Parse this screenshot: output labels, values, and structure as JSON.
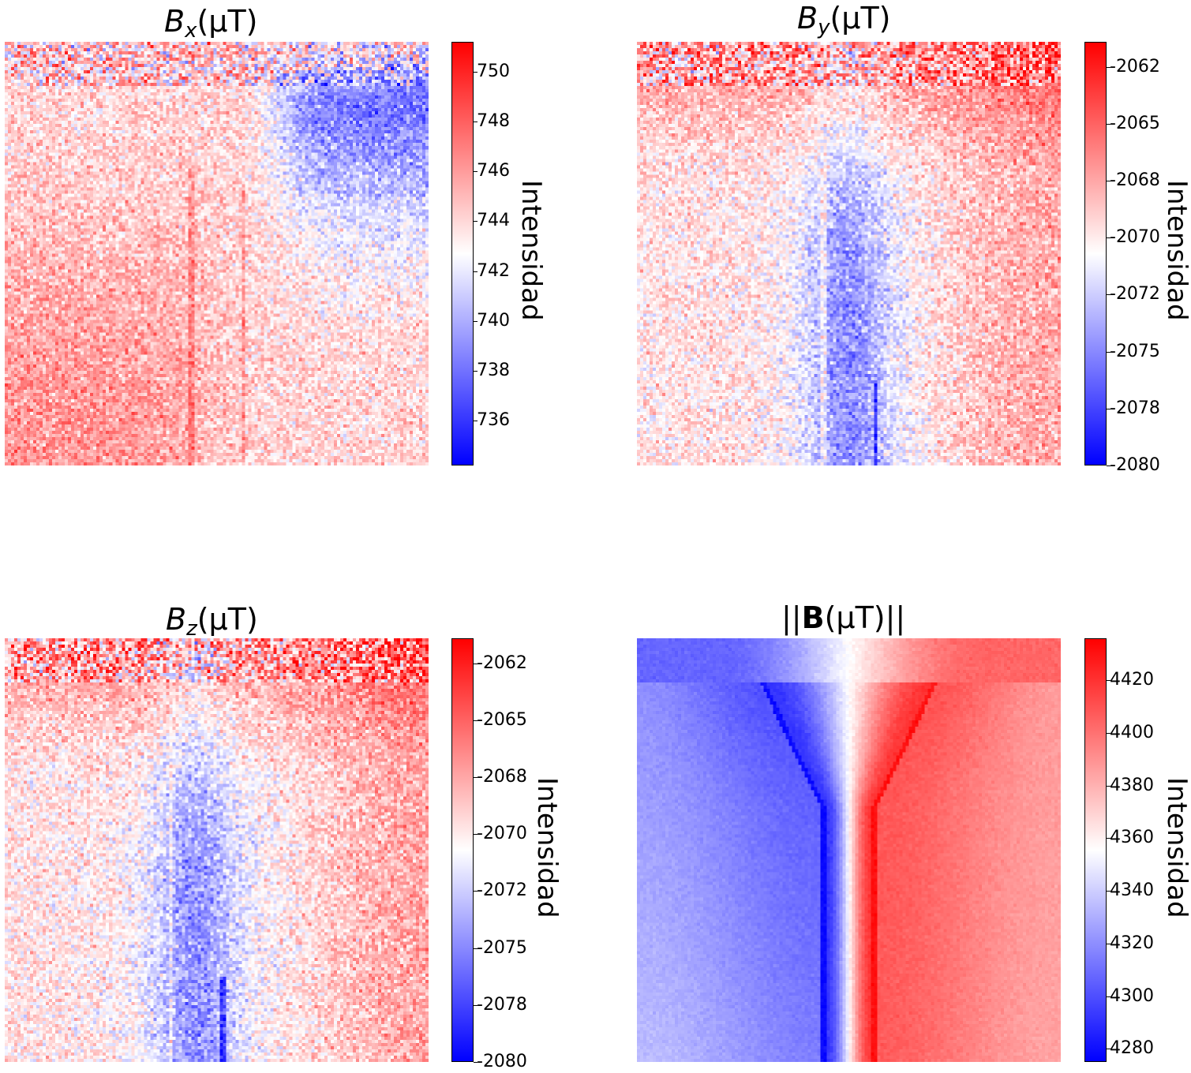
{
  "colors": {
    "low": "#0000ff",
    "mid": "#ffffff",
    "high": "#ff0000"
  },
  "chart_data": [
    {
      "type": "heatmap",
      "title_symbol": "B",
      "title_subscript": "x",
      "title_unit": "(μT)",
      "colorbar_label": "Intensidad",
      "vmin": 734.2,
      "vmax": 751.2,
      "ticks": [
        736,
        738,
        740,
        742,
        744,
        746,
        748,
        750
      ],
      "tick_labels": [
        "736",
        "738",
        "740",
        "742",
        "744",
        "746",
        "748",
        "750"
      ],
      "grid": false,
      "pattern": "bx"
    },
    {
      "type": "heatmap",
      "title_symbol": "B",
      "title_subscript": "y",
      "title_unit": "(μT)",
      "colorbar_label": "Intensidad",
      "vmin": -2080,
      "vmax": -2061.4,
      "ticks": [
        -2080,
        -2077.5,
        -2075,
        -2072.5,
        -2070,
        -2067.5,
        -2065,
        -2062.5
      ],
      "tick_labels": [
        "-2080",
        "-2078",
        "-2075",
        "-2072",
        "-2070",
        "-2068",
        "-2065",
        "-2062"
      ],
      "grid": false,
      "pattern": "by"
    },
    {
      "type": "heatmap",
      "title_symbol": "B",
      "title_subscript": "z",
      "title_unit": "(μT)",
      "colorbar_label": "Intensidad",
      "vmin": -2080,
      "vmax": -2061.4,
      "ticks": [
        -2080,
        -2077.5,
        -2075,
        -2072.5,
        -2070,
        -2067.5,
        -2065,
        -2062.5
      ],
      "tick_labels": [
        "-2080",
        "-2078",
        "-2075",
        "-2072",
        "-2070",
        "-2068",
        "-2065",
        "-2062"
      ],
      "grid": false,
      "pattern": "bz"
    },
    {
      "type": "heatmap",
      "title_prefix": "||",
      "title_symbol_bold": "B",
      "title_unit": "(μT)",
      "title_suffix": "||",
      "colorbar_label": "Intensidad",
      "vmin": 4275,
      "vmax": 4436,
      "ticks": [
        4280,
        4300,
        4320,
        4340,
        4360,
        4380,
        4400,
        4420
      ],
      "tick_labels": [
        "4280",
        "4300",
        "4320",
        "4340",
        "4360",
        "4380",
        "4400",
        "4420"
      ],
      "grid": false,
      "pattern": "bmag"
    }
  ]
}
